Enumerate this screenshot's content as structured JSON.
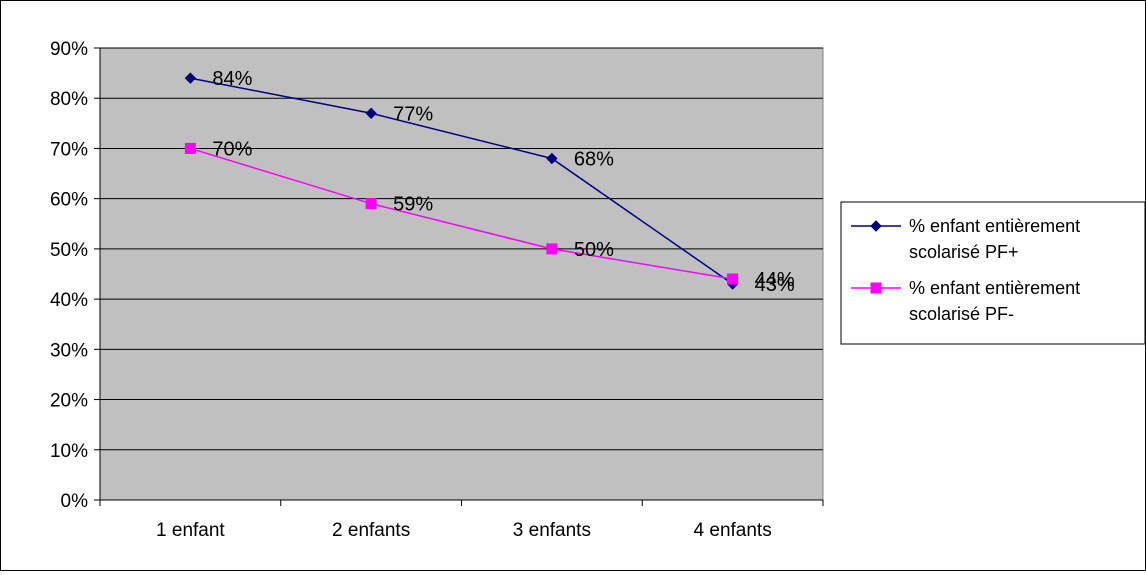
{
  "chart_data": {
    "type": "line",
    "title": "",
    "xlabel": "",
    "ylabel": "",
    "categories": [
      "1 enfant",
      "2 enfants",
      "3 enfants",
      "4 enfants"
    ],
    "ylim": [
      0,
      90
    ],
    "y_ticks": [
      0,
      10,
      20,
      30,
      40,
      50,
      60,
      70,
      80,
      90
    ],
    "y_tick_suffix": "%",
    "grid": true,
    "plot_background": "#c0c0c0",
    "legend_position": "right",
    "series": [
      {
        "name": "% enfant entièrement scolarisé PF+",
        "legend_lines": [
          "% enfant entièrement",
          "scolarisé PF+"
        ],
        "values": [
          84,
          77,
          68,
          43
        ],
        "data_labels": [
          "84%",
          "77%",
          "68%",
          "43%"
        ],
        "color": "#000080",
        "marker": "diamond"
      },
      {
        "name": "% enfant entièrement scolarisé PF-",
        "legend_lines": [
          "% enfant entièrement",
          "scolarisé PF-"
        ],
        "values": [
          70,
          59,
          50,
          44
        ],
        "data_labels": [
          "70%",
          "59%",
          "50%",
          "44%"
        ],
        "color": "#ff00ff",
        "marker": "square"
      }
    ]
  }
}
